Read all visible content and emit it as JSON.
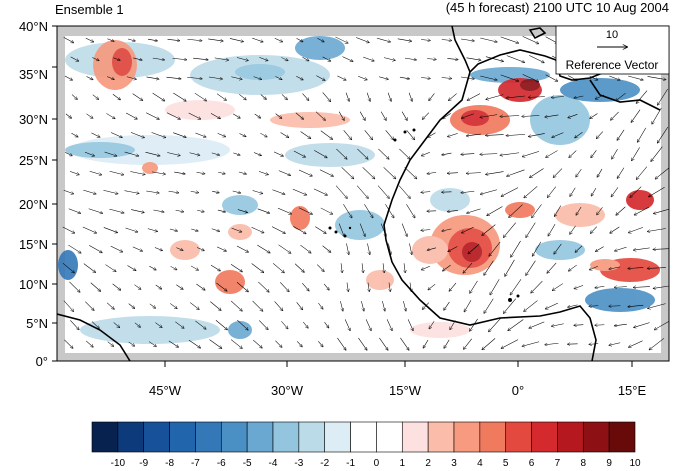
{
  "title_left": "Ensemble 1",
  "title_right": "(45 h forecast) 2100 UTC 10 Aug 2004",
  "reference_vector": {
    "magnitude": "10",
    "label": "Reference Vector"
  },
  "lat_labels": [
    "40°N",
    "35°N",
    "30°N",
    "25°N",
    "20°N",
    "15°N",
    "10°N",
    "5°N",
    "0°"
  ],
  "lon_labels": [
    "45°W",
    "30°W",
    "15°W",
    "0°",
    "15°E"
  ],
  "colorbar": {
    "labels": [
      "-10",
      "-9",
      "-8",
      "-7",
      "-6",
      "-5",
      "-4",
      "-3",
      "-2",
      "-1",
      "0",
      "1",
      "2",
      "3",
      "4",
      "5",
      "6",
      "7",
      "8",
      "9",
      "10"
    ],
    "colors": [
      "#08224f",
      "#0d3a7a",
      "#16519a",
      "#2166ac",
      "#3478b8",
      "#4a90c4",
      "#6aa8d2",
      "#93c6de",
      "#bcdbe8",
      "#dcedf6",
      "#ffffff",
      "#ffffff",
      "#fde0e0",
      "#fbbcaa",
      "#f79a80",
      "#f07a5e",
      "#e4493f",
      "#d42a2e",
      "#b5181e",
      "#8c1014",
      "#680a0a"
    ]
  },
  "colors": {
    "land_mask": "#c8c8c8",
    "coast": "#000000",
    "vector": "#000000"
  }
}
